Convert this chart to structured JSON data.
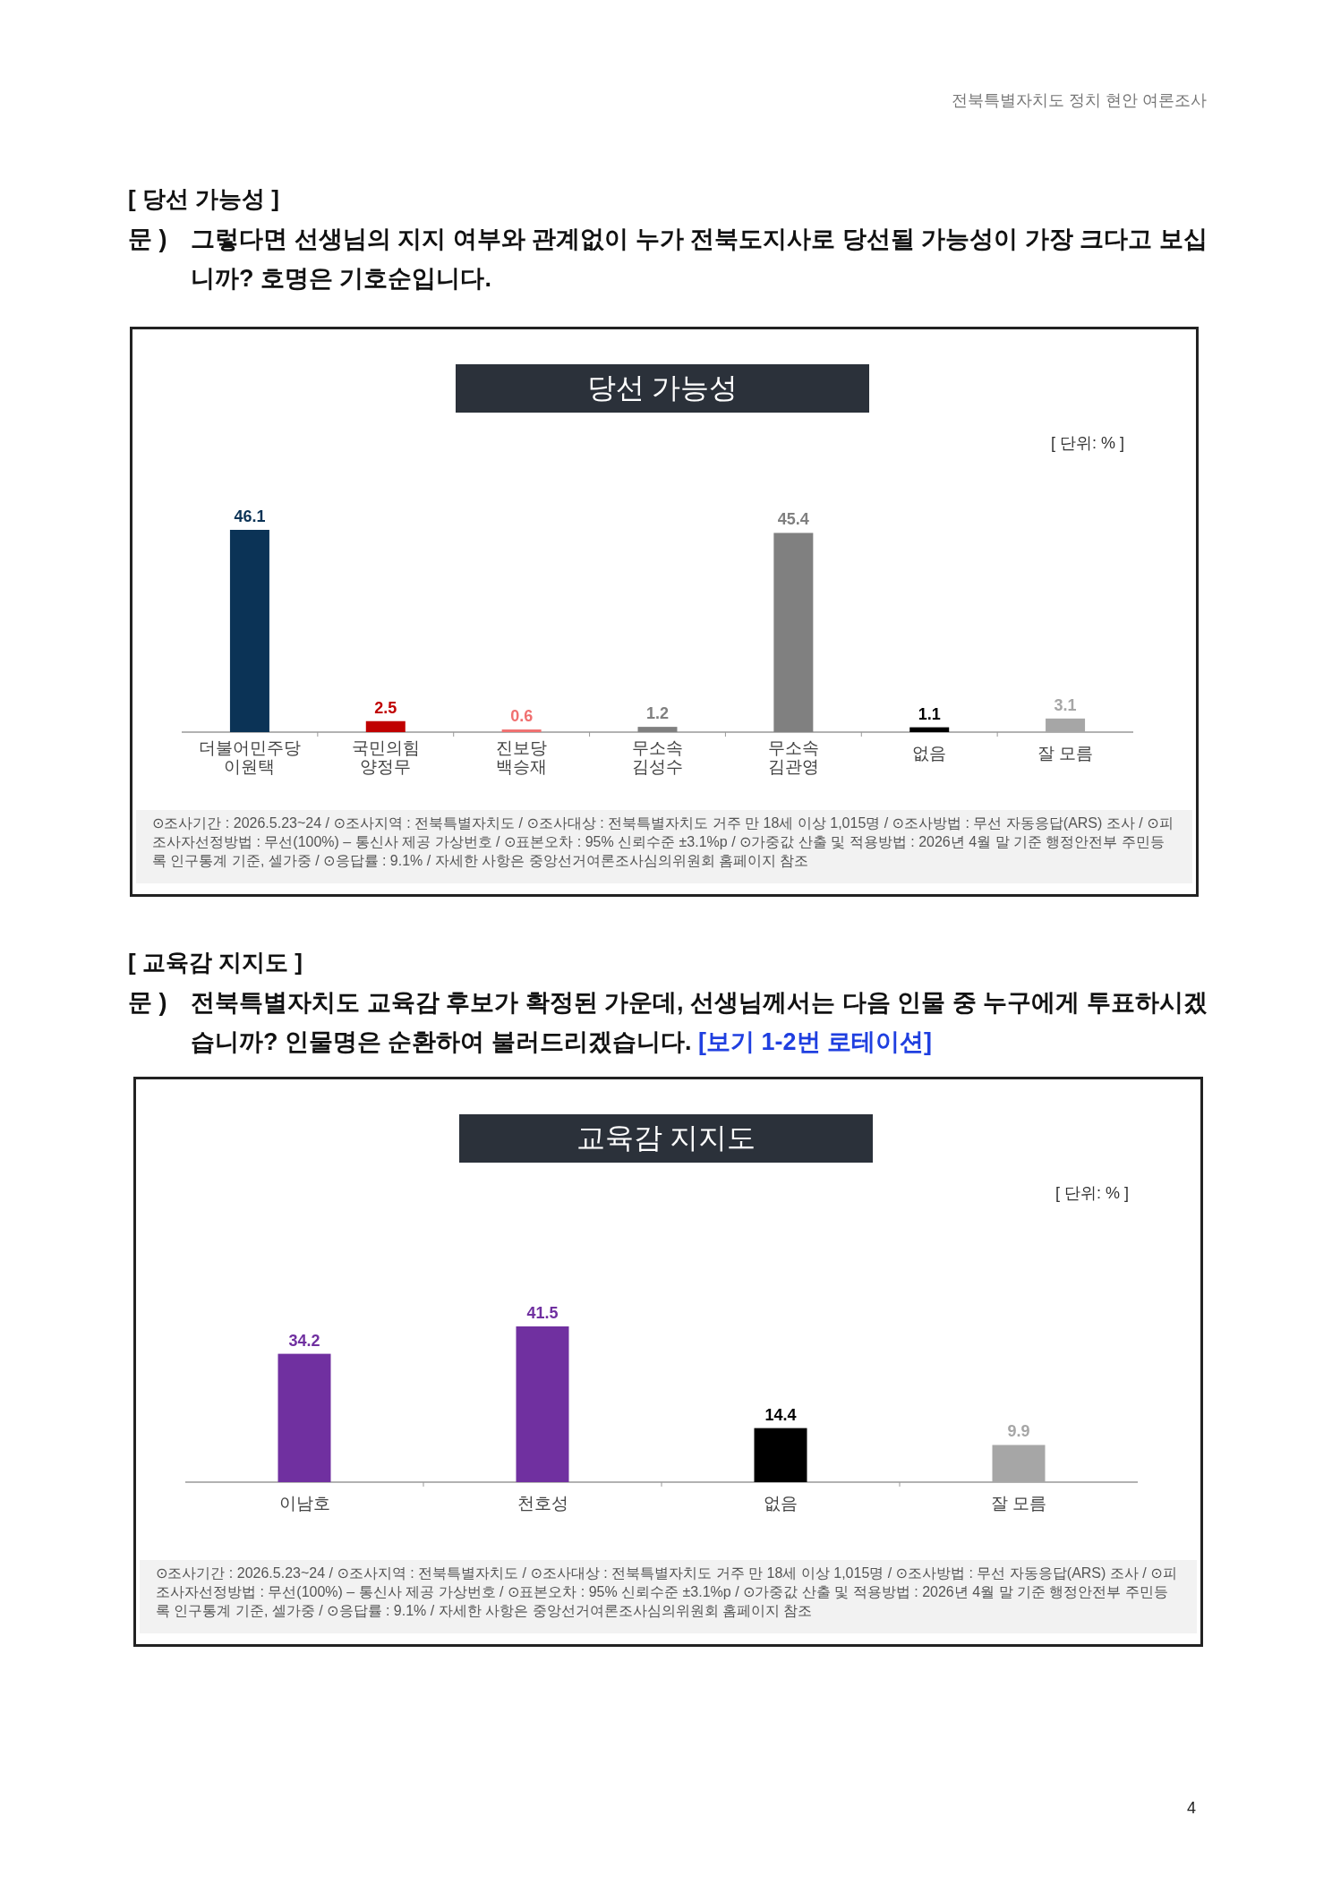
{
  "chart_data": [
    {
      "type": "bar",
      "title": "당선 가능성",
      "categories": [
        "더불어민주당\n이원택",
        "국민의힘\n양정무",
        "진보당\n백승재",
        "무소속\n김성수",
        "무소속\n김관영",
        "없음",
        "잘 모름"
      ],
      "values": [
        46.1,
        2.5,
        0.6,
        1.2,
        45.4,
        1.1,
        3.1
      ],
      "colors": [
        "#0b3356",
        "#c00000",
        "#f07070",
        "#808080",
        "#808080",
        "#000000",
        "#a6a6a6"
      ],
      "data_labels": true,
      "annotations": [
        "전북특별자치도 정치 현안 여론조사",
        "[ 당선 가능성 ]",
        "문 )",
        "그렇다면 선생님의 지지 여부와 관계없이 누가 전북도지사로 당선될 가능성이 가장 크다고 보십니까? 호명은 기호순입니다.",
        "[ 단위: % ]",
        "⊙조사기간 : 2026.5.23~24 / ⊙조사지역 : 전북특별자치도 / ⊙조사대상 : 전북특별자치도 거주 만 18세 이상 1,015명 / ⊙조사방법 : 무선 자동응답(ARS) 조사 / ⊙피조사자선정방법 : 무선(100%) – 통신사 제공 가상번호 / ⊙표본오차 : 95% 신뢰수준 ±3.1%p / ⊙가중값 산출 및 적용방법 : 2026년 4월 말 기준 행정안전부 주민등록 인구통계 기준, 셀가중 / ⊙응답률 : 9.1% / 자세한 사항은 중앙선거여론조사심의위원회 홈페이지 참조",
        "4"
      ]
    },
    {
      "type": "bar",
      "title": "교육감 지지도",
      "categories": [
        "이남호",
        "천호성",
        "없음",
        "잘 모름"
      ],
      "values": [
        34.2,
        41.5,
        14.4,
        9.9
      ],
      "colors": [
        "#7030a0",
        "#7030a0",
        "#000000",
        "#a6a6a6"
      ],
      "data_labels": true,
      "annotations": [
        "[ 교육감 지지도 ]",
        "문 )",
        "전북특별자치도 교육감 후보가 확정된 가운데, 선생님께서는 다음 인물 중 누구에게 투표하시겠습니까? 인물명은 순환하여 불러드리겠습니다.",
        "[보기 1-2번 로테이션]",
        "[ 단위: % ]",
        "⊙조사기간 : 2026.5.23~24 / ⊙조사지역 : 전북특별자치도 / ⊙조사대상 : 전북특별자치도 거주 만 18세 이상 1,015명 / ⊙조사방법 : 무선 자동응답(ARS) 조사 / ⊙피조사자선정방법 : 무선(100%) – 통신사 제공 가상번호 / ⊙표본오차 : 95% 신뢰수준 ±3.1%p / ⊙가중값 산출 및 적용방법 : 2026년 4월 말 기준 행정안전부 주민등록 인구통계 기준, 셀가중 / ⊙응답률 : 9.1% / 자세한 사항은 중앙선거여론조사심의위원회 홈페이지 참조"
      ]
    }
  ]
}
